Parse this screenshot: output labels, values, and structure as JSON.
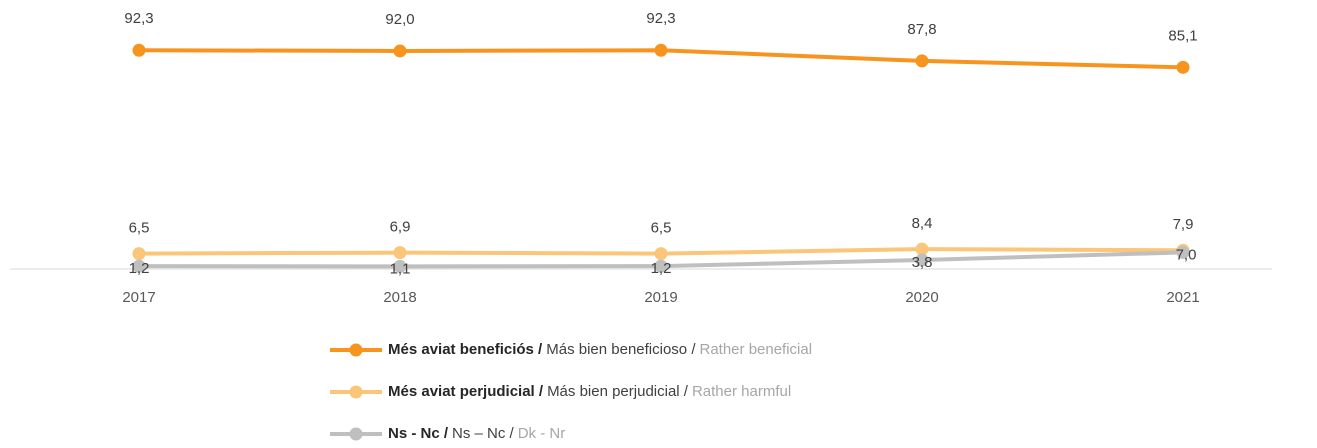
{
  "chart_data": {
    "type": "line",
    "categories": [
      "2017",
      "2018",
      "2019",
      "2020",
      "2021"
    ],
    "ylim": [
      0,
      100
    ],
    "series": [
      {
        "name": [
          "Més aviat beneficiós /",
          "Más bien beneficioso /",
          "Rather beneficial"
        ],
        "color": "#F7941D",
        "values": [
          92.3,
          92.0,
          92.3,
          87.8,
          85.1
        ],
        "value_labels": [
          "92,3",
          "92,0",
          "92,3",
          "87,8",
          "85,1"
        ]
      },
      {
        "name": [
          "Més aviat perjudicial /",
          "Más bien perjudicial /",
          "Rather harmful"
        ],
        "color": "#FBC57A",
        "values": [
          6.5,
          6.9,
          6.5,
          8.4,
          7.9
        ],
        "value_labels": [
          "6,5",
          "6,9",
          "6,5",
          "8,4",
          "7,9"
        ]
      },
      {
        "name": [
          "Ns - Nc /",
          "Ns – Nc /",
          "Dk - Nr"
        ],
        "color": "#BFBFBF",
        "values": [
          1.2,
          1.1,
          1.2,
          3.8,
          7.0
        ],
        "value_labels": [
          "1,2",
          "1,1",
          "1,2",
          "3,8",
          "7,0"
        ]
      }
    ]
  }
}
